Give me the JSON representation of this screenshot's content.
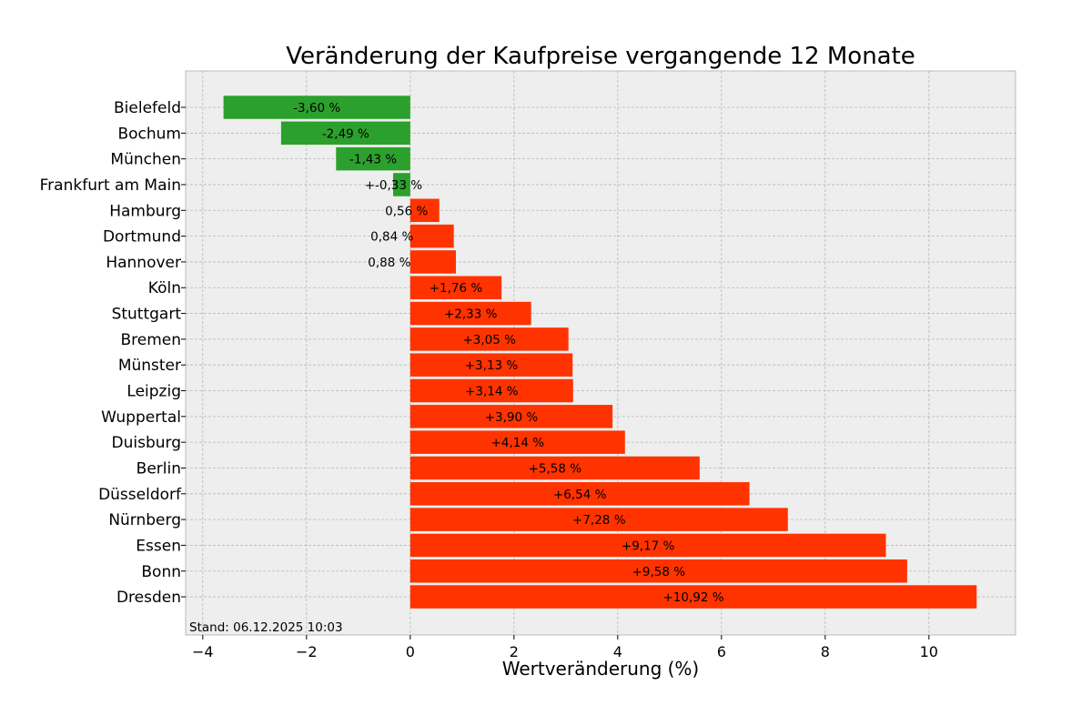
{
  "chart_data": {
    "type": "bar",
    "orientation": "horizontal",
    "title": "Veränderung der Kaufpreise vergangende 12 Monate",
    "xlabel": "Wertveränderung (%)",
    "ylabel": "",
    "xlim": [
      -4.33,
      11.67
    ],
    "xticks": [
      -4,
      -2,
      0,
      2,
      4,
      6,
      8,
      10
    ],
    "xtick_labels": [
      "−4",
      "−2",
      "0",
      "2",
      "4",
      "6",
      "8",
      "10"
    ],
    "grid": true,
    "categories": [
      "Bielefeld",
      "Bochum",
      "München",
      "Frankfurt am Main",
      "Hamburg",
      "Dortmund",
      "Hannover",
      "Köln",
      "Stuttgart",
      "Bremen",
      "Münster",
      "Leipzig",
      "Wuppertal",
      "Duisburg",
      "Berlin",
      "Düsseldorf",
      "Nürnberg",
      "Essen",
      "Bonn",
      "Dresden"
    ],
    "values": [
      -3.6,
      -2.49,
      -1.43,
      -0.33,
      0.56,
      0.84,
      0.88,
      1.76,
      2.33,
      3.05,
      3.13,
      3.14,
      3.9,
      4.14,
      5.58,
      6.54,
      7.28,
      9.17,
      9.58,
      10.92
    ],
    "data_labels": [
      "-3,60 %",
      "-2,49 %",
      "-1,43 %",
      "+-0,33 %",
      "0,56 %",
      "0,84 %",
      "0,88 %",
      "+1,76 %",
      "+2,33 %",
      "+3,05 %",
      "+3,13 %",
      "+3,14 %",
      "+3,90 %",
      "+4,14 %",
      "+5,58 %",
      "+6,54 %",
      "+7,28 %",
      "+9,17 %",
      "+9,58 %",
      "+10,92 %"
    ],
    "annotation": "Stand: 06.12.2025 10:03",
    "colors": {
      "negative": "#2ca02c",
      "positive": "#ff3300",
      "background": "#eeeeee",
      "grid": "#b8b8b8"
    }
  }
}
